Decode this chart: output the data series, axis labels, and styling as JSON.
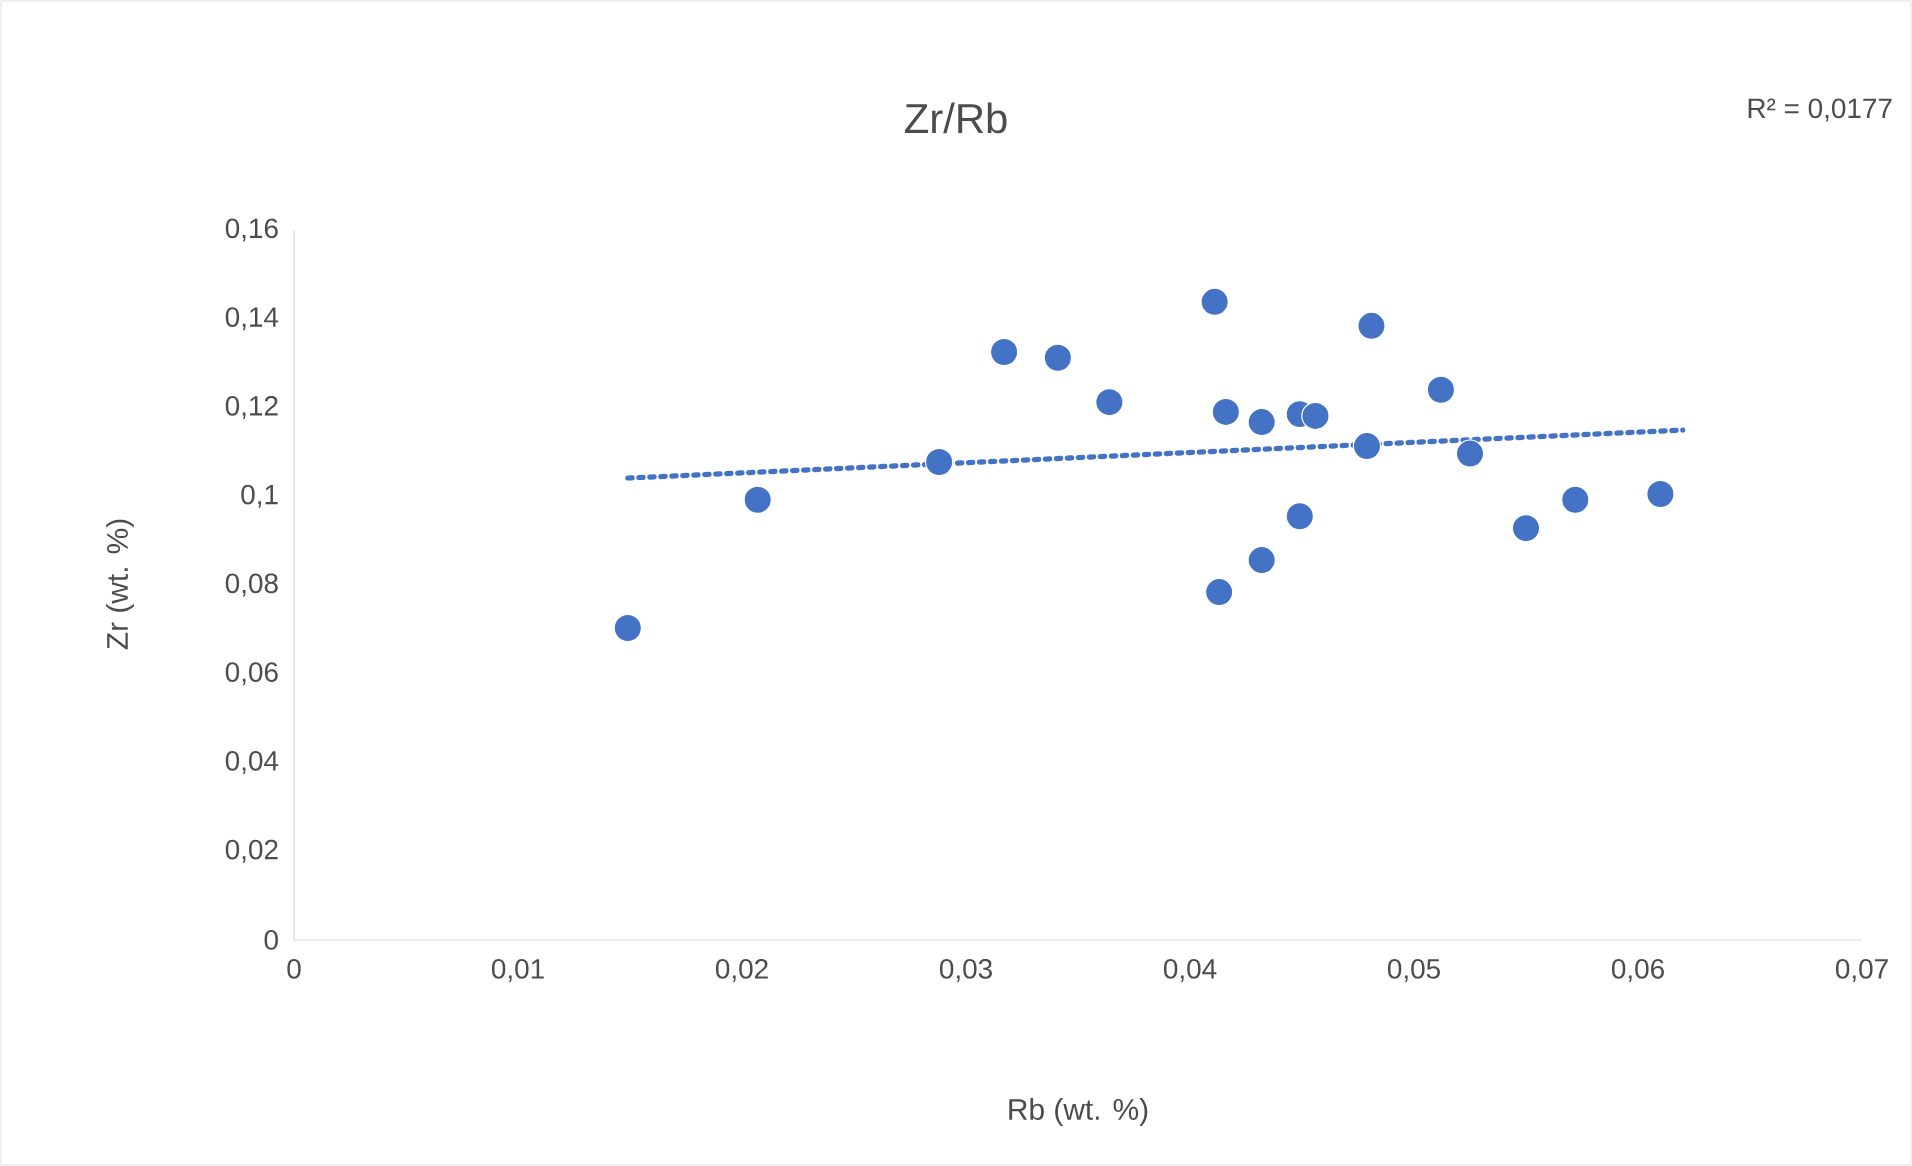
{
  "chart_data": {
    "type": "scatter",
    "title": "Zr/Rb",
    "xlabel": "Rb (wt. %)",
    "ylabel": "Zr (wt. %)",
    "annotations": [
      "R² = 0,0177"
    ],
    "xlim": [
      0,
      0.07
    ],
    "ylim": [
      0,
      0.16
    ],
    "xticks": [
      0,
      {
        "value": 0.01,
        "label": "0,01"
      },
      {
        "value": 0.02,
        "label": "0,02"
      },
      {
        "value": 0.03,
        "label": "0,03"
      },
      {
        "value": 0.04,
        "label": "0,04"
      },
      {
        "value": 0.05,
        "label": "0,05"
      },
      {
        "value": 0.06,
        "label": "0,06"
      },
      {
        "value": 0.07,
        "label": "0,07"
      }
    ],
    "yticks": [
      0,
      {
        "value": 0.02,
        "label": "0,02"
      },
      {
        "value": 0.04,
        "label": "0,04"
      },
      {
        "value": 0.06,
        "label": "0,06"
      },
      {
        "value": 0.08,
        "label": "0,08"
      },
      {
        "value": 0.1,
        "label": "0,1"
      },
      {
        "value": 0.12,
        "label": "0,12"
      },
      {
        "value": 0.14,
        "label": "0,14"
      },
      {
        "value": 0.16,
        "label": "0,16"
      }
    ],
    "series": [
      {
        "color": "#4472c4",
        "marker": "circle",
        "x": [
          0.0149,
          0.0207,
          0.0288,
          0.0317,
          0.0341,
          0.0364,
          0.0411,
          0.0416,
          0.0413,
          0.0432,
          0.0432,
          0.0449,
          0.0456,
          0.0449,
          0.0479,
          0.0481,
          0.0512,
          0.0525,
          0.055,
          0.0572,
          0.061
        ],
        "values": [
          0.0703,
          0.0992,
          0.1077,
          0.1325,
          0.1312,
          0.1212,
          0.1438,
          0.119,
          0.0784,
          0.0856,
          0.1167,
          0.1185,
          0.1181,
          0.0955,
          0.1113,
          0.1384,
          0.124,
          0.1096,
          0.0928,
          0.0992,
          0.1005
        ]
      },
      {
        "type": "line",
        "color": "#4472c4",
        "line_style": "dotted",
        "marker": "none",
        "x": [
          0.0149,
          0.062
        ],
        "values": [
          0.1041,
          0.1149
        ]
      }
    ]
  }
}
